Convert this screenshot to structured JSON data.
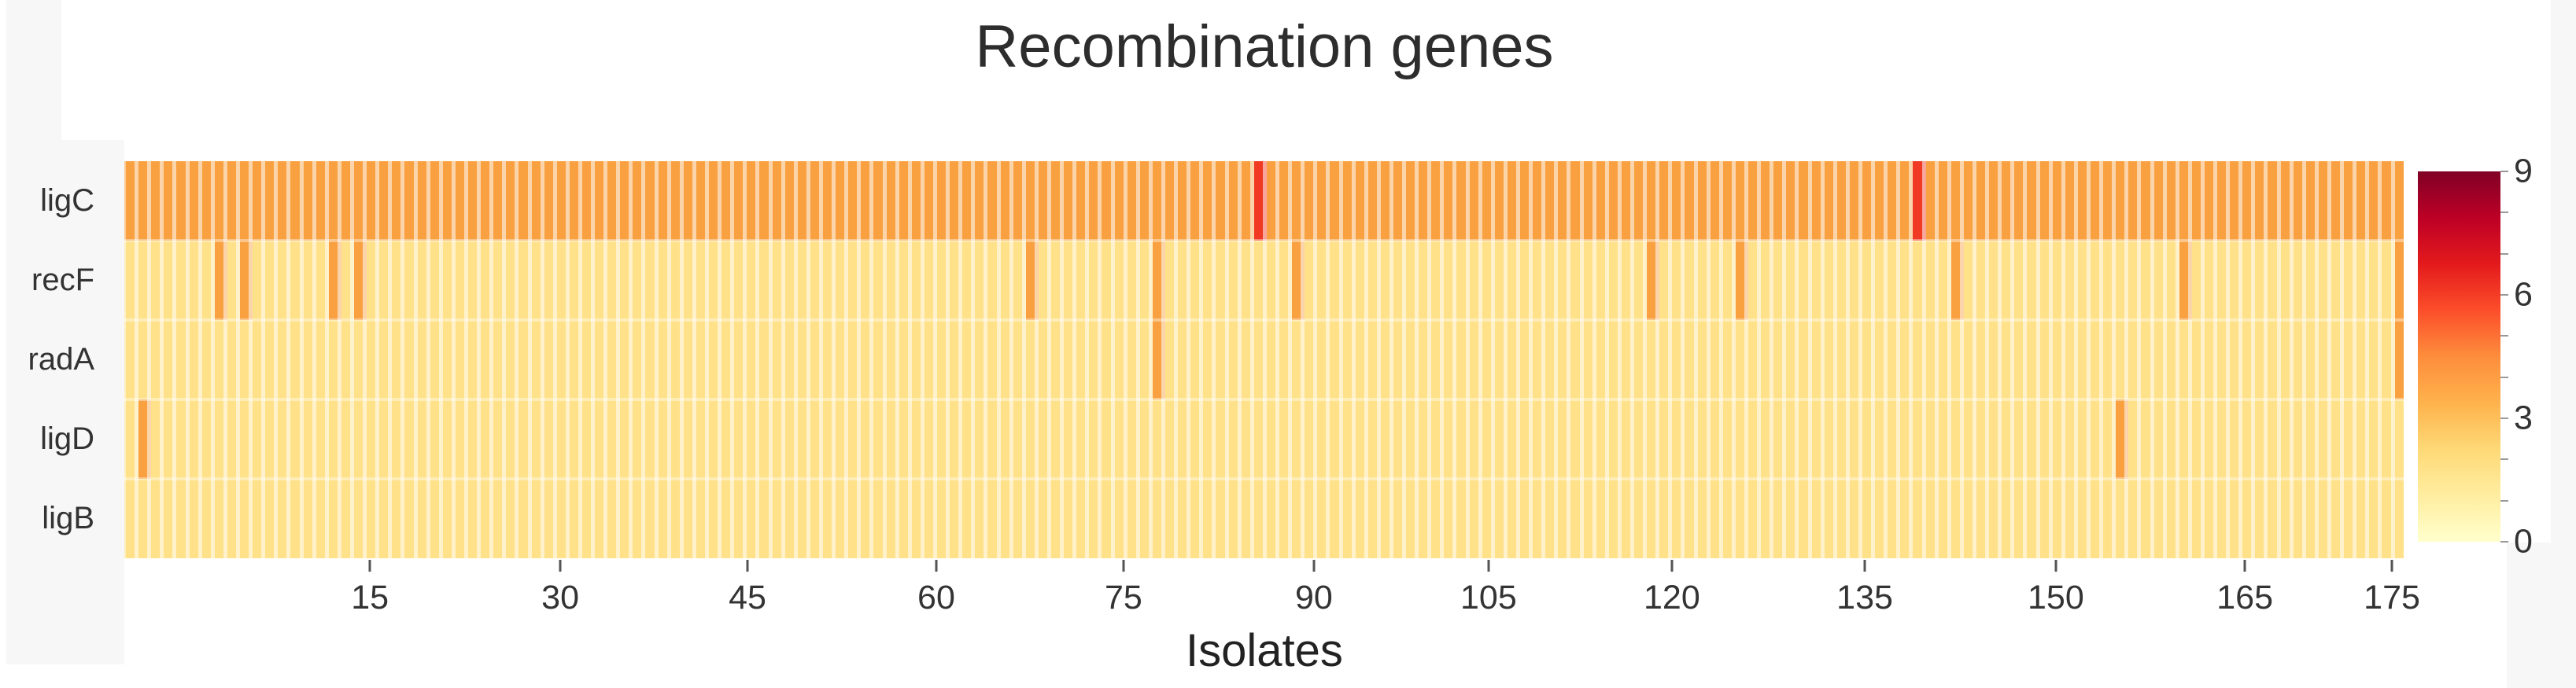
{
  "title": "Recombination genes",
  "x_axis": {
    "label": "Isolates",
    "ticks": [
      {
        "label": "15",
        "pos": 0.1077
      },
      {
        "label": "30",
        "pos": 0.1912
      },
      {
        "label": "45",
        "pos": 0.2733
      },
      {
        "label": "60",
        "pos": 0.3561
      },
      {
        "label": "75",
        "pos": 0.4382
      },
      {
        "label": "90",
        "pos": 0.5217
      },
      {
        "label": "105",
        "pos": 0.5983
      },
      {
        "label": "120",
        "pos": 0.6787
      },
      {
        "label": "135",
        "pos": 0.7633
      },
      {
        "label": "150",
        "pos": 0.8471
      },
      {
        "label": "165",
        "pos": 0.93
      },
      {
        "label": "175",
        "pos": 0.9945
      }
    ]
  },
  "chart_data": {
    "type": "heatmap",
    "title": "Recombination genes",
    "xlabel": "Isolates",
    "rows": [
      "ligC",
      "recF",
      "radA",
      "ligD",
      "ligB"
    ],
    "n_columns": 180,
    "x_tick_labels": [
      "15",
      "30",
      "45",
      "60",
      "75",
      "90",
      "105",
      "120",
      "135",
      "150",
      "165",
      "175"
    ],
    "base_values": {
      "ligC": 3,
      "recF": 1,
      "radA": 1,
      "ligD": 1,
      "ligB": 1
    },
    "anomalies": [
      {
        "row": "ligC",
        "col": 90,
        "value": 6
      },
      {
        "row": "ligC",
        "col": 142,
        "value": 6
      },
      {
        "row": "recF",
        "col": 8,
        "value": 3
      },
      {
        "row": "recF",
        "col": 10,
        "value": 3
      },
      {
        "row": "recF",
        "col": 17,
        "value": 3
      },
      {
        "row": "recF",
        "col": 19,
        "value": 3
      },
      {
        "row": "recF",
        "col": 72,
        "value": 3
      },
      {
        "row": "recF",
        "col": 82,
        "value": 3
      },
      {
        "row": "recF",
        "col": 93,
        "value": 3
      },
      {
        "row": "recF",
        "col": 121,
        "value": 3
      },
      {
        "row": "recF",
        "col": 128,
        "value": 3
      },
      {
        "row": "recF",
        "col": 145,
        "value": 3
      },
      {
        "row": "recF",
        "col": 163,
        "value": 3
      },
      {
        "row": "recF",
        "col": 180,
        "value": 3
      },
      {
        "row": "radA",
        "col": 82,
        "value": 3
      },
      {
        "row": "radA",
        "col": 180,
        "value": 3
      },
      {
        "row": "ligD",
        "col": 2,
        "value": 3
      },
      {
        "row": "ligD",
        "col": 158,
        "value": 3
      }
    ],
    "value_colors": {
      "1": "#FFE189",
      "3": "#F9A140",
      "6": "#F03A24"
    },
    "colorbar": {
      "min": 0,
      "max": 9,
      "tick_values": [
        9,
        6,
        3,
        0
      ],
      "minor_tick_step": 1,
      "gradient_low_to_high": [
        "#FFFFCC",
        "#FFEDA0",
        "#FED976",
        "#FEB24C",
        "#FD8D3C",
        "#FC4E2A",
        "#E31A1C",
        "#BD0026",
        "#800026"
      ]
    }
  }
}
